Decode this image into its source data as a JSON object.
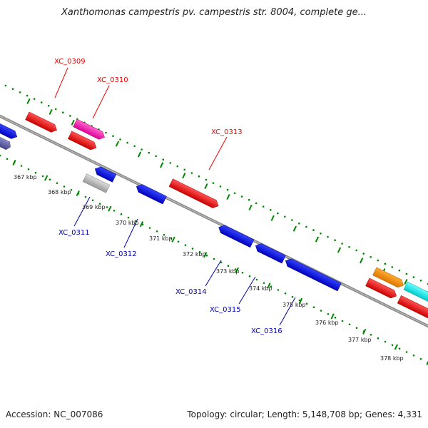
{
  "title": "Xanthomonas campestris pv. campestris str. 8004, complete ge...",
  "footer": {
    "accession": "Accession: NC_007086",
    "summary": "Topology: circular; Length: 5,148,708 bp; Genes: 4,331"
  },
  "colors": {
    "forward_gene": "#ff0000",
    "reverse_gene": "#0000ff",
    "backbone": "#888888",
    "gc_dots": "#008800"
  },
  "tick_labels": [
    "367 kbp",
    "368 kbp",
    "369 kbp",
    "370 kbp",
    "371 kbp",
    "372 kbp",
    "373 kbp",
    "374 kbp",
    "375 kbp",
    "376 kbp",
    "377 kbp",
    "378 kbp"
  ],
  "gene_labels": [
    "XC_0309",
    "XC_0310",
    "XC_0313",
    "XC_0311",
    "XC_0312",
    "XC_0314",
    "XC_0315",
    "XC_0316"
  ]
}
